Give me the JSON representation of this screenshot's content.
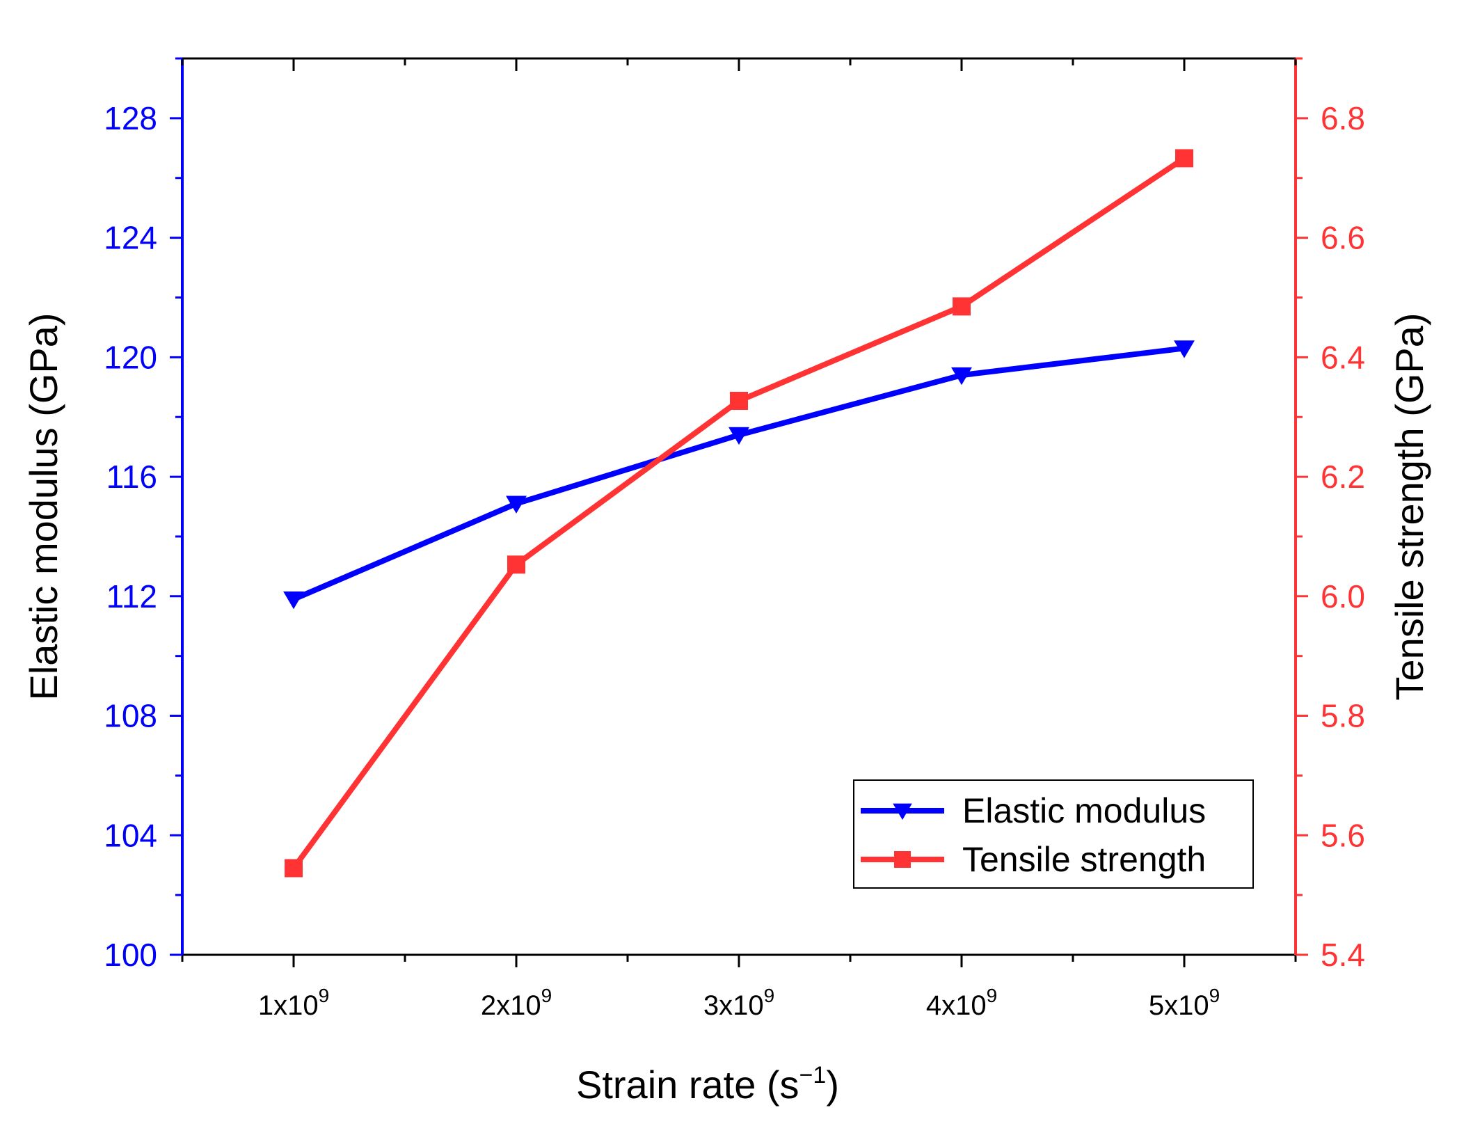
{
  "chart_data": {
    "type": "line",
    "x": [
      "1x10^9",
      "2x10^9",
      "3x10^9",
      "4x10^9",
      "5x10^9"
    ],
    "x_values": [
      1,
      2,
      3,
      4,
      5
    ],
    "x_tick_labels": [
      {
        "base": "1x10",
        "exp": "9"
      },
      {
        "base": "2x10",
        "exp": "9"
      },
      {
        "base": "3x10",
        "exp": "9"
      },
      {
        "base": "4x10",
        "exp": "9"
      },
      {
        "base": "5x10",
        "exp": "9"
      }
    ],
    "xlim": [
      0.5,
      5.5
    ],
    "xlabel": {
      "main": "Strain rate (s",
      "sup": "−1",
      "close": ")"
    },
    "series": [
      {
        "name": "Elastic modulus",
        "axis": "left",
        "color": "#0000ff",
        "marker": "triangle-down",
        "values": [
          111.9,
          115.1,
          117.4,
          119.4,
          120.3
        ]
      },
      {
        "name": "Tensile strength",
        "axis": "right",
        "color": "#ff3333",
        "marker": "square",
        "values": [
          5.545,
          6.053,
          6.327,
          6.485,
          6.733
        ]
      }
    ],
    "y_left": {
      "label": "Elastic modulus (GPa)",
      "lim": [
        100,
        130
      ],
      "ticks": [
        100,
        104,
        108,
        112,
        116,
        120,
        124,
        128
      ],
      "tick_labels": [
        "100",
        "104",
        "108",
        "112",
        "116",
        "120",
        "124",
        "128"
      ],
      "color": "#0000ff"
    },
    "y_right": {
      "label": "Tensile strength (GPa)",
      "lim": [
        5.4,
        6.9
      ],
      "ticks": [
        5.4,
        5.6,
        5.8,
        6.0,
        6.2,
        6.4,
        6.6,
        6.8
      ],
      "tick_labels": [
        "5.4",
        "5.6",
        "5.8",
        "6.0",
        "6.2",
        "6.4",
        "6.6",
        "6.8"
      ],
      "color": "#ff3333"
    },
    "legend": {
      "position": "bottom-right",
      "entries": [
        "Elastic modulus",
        "Tensile strength"
      ]
    },
    "grid": false
  }
}
